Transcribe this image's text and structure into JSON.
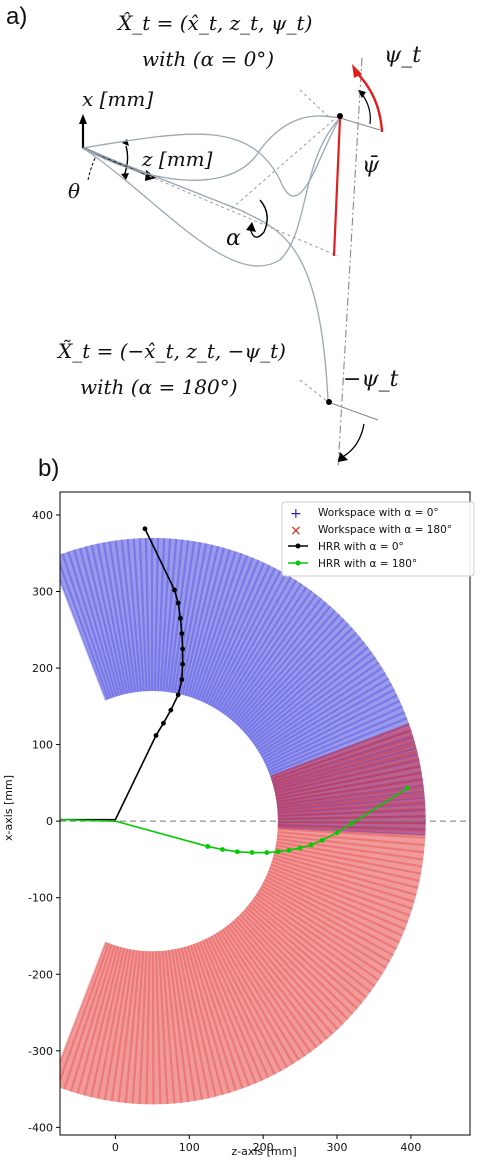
{
  "panel_a": {
    "label": "a)",
    "top_eq": "X̂_t = (x̂_t, z_t, ψ_t)",
    "top_with": "with (α = 0°)",
    "bottom_eq": "X̃_t = (−x̂_t, z_t, −ψ_t)",
    "bottom_with": "with (α = 180°)",
    "x_axis_label": "x [mm]",
    "z_axis_label": "z [mm]",
    "theta": "θ",
    "alpha": "α",
    "psi_t": "ψ_t",
    "psi_bar": "ψ̄",
    "neg_psi_t": "−ψ_t",
    "accent_color": "#e02020",
    "curve_color": "#9aa7b5"
  },
  "panel_b": {
    "label": "b)",
    "chart_data": {
      "type": "scatter",
      "xlabel": "z-axis [mm]",
      "ylabel": "x-axis [mm]",
      "xlim": [
        -75,
        480
      ],
      "ylim": [
        -410,
        430
      ],
      "xticks": [
        0,
        100,
        200,
        300,
        400
      ],
      "yticks": [
        400,
        300,
        200,
        100,
        0,
        -100,
        -200,
        -300,
        -400
      ],
      "grid": false,
      "legend_position": "top-right",
      "legend": [
        {
          "marker": "+",
          "color": "#1f1fd6",
          "label": "Workspace with α = 0°"
        },
        {
          "marker": "×",
          "color": "#e02020",
          "label": "Workspace with α = 180°"
        },
        {
          "marker": "line-dot",
          "color": "#000000",
          "label": "HRR with α = 0°"
        },
        {
          "marker": "line-dot",
          "color": "#00cc00",
          "label": "HRR with α = 180°"
        }
      ],
      "zero_line": {
        "y": 0,
        "style": "dashed",
        "color": "#777777"
      },
      "workspace_region": {
        "center_z": 50,
        "center_x": 0,
        "inner_radius": 170,
        "outer_radius": 370,
        "alpha_0_color": "#1f1fd6",
        "alpha_180_color": "#e02020"
      },
      "series": [
        {
          "name": "HRR with α = 0°",
          "color": "#000000",
          "x": [
            -75,
            0,
            55,
            65,
            75,
            85,
            90,
            91,
            91,
            90,
            88,
            85,
            80,
            40
          ],
          "y": [
            2,
            2,
            112,
            128,
            145,
            165,
            185,
            205,
            225,
            245,
            265,
            285,
            302,
            382
          ]
        },
        {
          "name": "HRR with α = 180°",
          "color": "#00cc00",
          "x": [
            -75,
            0,
            125,
            145,
            165,
            185,
            205,
            220,
            235,
            250,
            265,
            280,
            300,
            320,
            395
          ],
          "y": [
            2,
            0,
            -33,
            -37,
            -40,
            -41,
            -41,
            -40,
            -38,
            -35,
            -31,
            -25,
            -15,
            -3,
            43
          ]
        }
      ]
    }
  }
}
